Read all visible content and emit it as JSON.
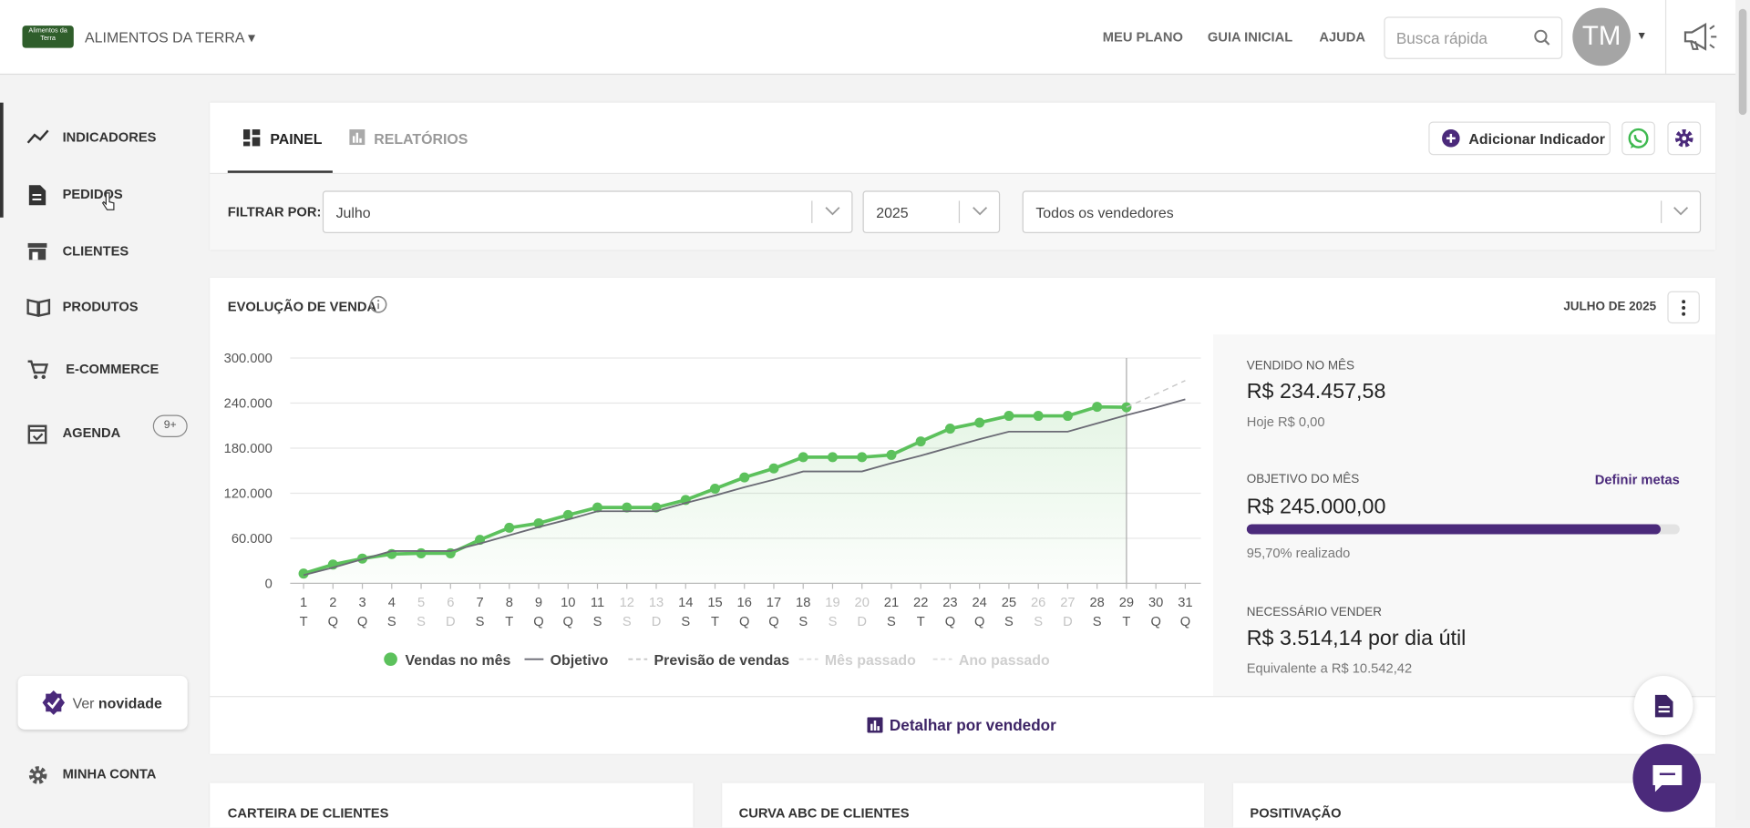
{
  "header": {
    "logo_lines": [
      "Alimentos da",
      "Terra"
    ],
    "company": "ALIMENTOS DA TERRA",
    "nav": [
      "MEU PLANO",
      "GUIA INICIAL",
      "AJUDA"
    ],
    "search_placeholder": "Busca rápida",
    "avatar": "TM"
  },
  "sidebar": {
    "items": [
      {
        "label": "INDICADORES"
      },
      {
        "label": "PEDIDOS"
      },
      {
        "label": "CLIENTES"
      },
      {
        "label": "PRODUTOS"
      },
      {
        "label": "E-COMMERCE"
      },
      {
        "label": "AGENDA",
        "badge": "9+"
      }
    ],
    "news_prefix": "Ver",
    "news_bold": "novidade",
    "account": "MINHA CONTA"
  },
  "tabs": [
    "PAINEL",
    "RELATÓRIOS"
  ],
  "add_button": "Adicionar Indicador",
  "filter": {
    "label": "FILTRAR POR:",
    "month": "Julho",
    "year": "2025",
    "seller": "Todos os vendedores"
  },
  "chart_data": {
    "type": "line",
    "title": "EVOLUÇÃO DE VENDA",
    "period": "JULHO DE 2025",
    "categories": [
      "1",
      "2",
      "3",
      "4",
      "5",
      "6",
      "7",
      "8",
      "9",
      "10",
      "11",
      "12",
      "13",
      "14",
      "15",
      "16",
      "17",
      "18",
      "19",
      "20",
      "21",
      "22",
      "23",
      "24",
      "25",
      "26",
      "27",
      "28",
      "29",
      "30",
      "31"
    ],
    "weekdays": [
      "T",
      "Q",
      "Q",
      "S",
      "S",
      "D",
      "S",
      "T",
      "Q",
      "Q",
      "S",
      "S",
      "D",
      "S",
      "T",
      "Q",
      "Q",
      "S",
      "S",
      "D",
      "S",
      "T",
      "Q",
      "Q",
      "S",
      "S",
      "D",
      "S",
      "T",
      "Q",
      "Q"
    ],
    "ylim": [
      0,
      300000
    ],
    "yticks": [
      0,
      {
        "value": 60000,
        "label": "60.000"
      },
      {
        "value": 120000,
        "label": "120.000"
      },
      {
        "value": 180000,
        "label": "180.000"
      },
      {
        "value": 240000,
        "label": "240.000"
      },
      {
        "value": 300000,
        "label": "300.000"
      }
    ],
    "grid": true,
    "series": [
      {
        "name": "Vendas no mês",
        "color": "#5cc15c",
        "style": "points",
        "values": [
          13000,
          25000,
          33000,
          39000,
          40000,
          40000,
          58000,
          74000,
          80000,
          91000,
          101000,
          101000,
          101000,
          111000,
          126000,
          141000,
          153000,
          168000,
          168000,
          168000,
          171000,
          189000,
          206000,
          214000,
          223000,
          223000,
          223000,
          235000,
          234458,
          null,
          null
        ]
      },
      {
        "name": "Objetivo",
        "color": "#6b6b75",
        "style": "solid",
        "values": [
          11000,
          21000,
          32000,
          43000,
          43000,
          43000,
          53000,
          64000,
          75000,
          85000,
          96000,
          96000,
          96000,
          107000,
          117000,
          128000,
          138000,
          149000,
          149000,
          149000,
          160000,
          170000,
          181000,
          192000,
          202000,
          202000,
          202000,
          213000,
          224000,
          234000,
          245000
        ]
      },
      {
        "name": "Previsão de vendas",
        "color": "#c8c8c8",
        "style": "dashed",
        "values": [
          null,
          null,
          null,
          null,
          null,
          null,
          null,
          null,
          null,
          null,
          null,
          null,
          null,
          null,
          null,
          null,
          null,
          null,
          null,
          null,
          null,
          null,
          null,
          null,
          null,
          null,
          null,
          null,
          234458,
          252000,
          270000
        ]
      },
      {
        "name": "Mês passado",
        "color": "#dddddd",
        "style": "dashed",
        "values": [
          null,
          null,
          null,
          null,
          null,
          null,
          null,
          null,
          null,
          null,
          null,
          null,
          null,
          null,
          null,
          null,
          null,
          null,
          null,
          null,
          null,
          null,
          null,
          null,
          null,
          null,
          null,
          null,
          null,
          null,
          null
        ]
      },
      {
        "name": "Ano passado",
        "color": "#dddddd",
        "style": "dashed",
        "values": [
          null,
          null,
          null,
          null,
          null,
          null,
          null,
          null,
          null,
          null,
          null,
          null,
          null,
          null,
          null,
          null,
          null,
          null,
          null,
          null,
          null,
          null,
          null,
          null,
          null,
          null,
          null,
          null,
          null,
          null,
          null
        ]
      }
    ]
  },
  "stats": [
    {
      "label": "VENDIDO NO MÊS",
      "value": "R$ 234.457,58",
      "note": "Hoje R$ 0,00"
    },
    {
      "label": "OBJETIVO DO MÊS",
      "value": "R$ 245.000,00",
      "note": "95,70% realizado",
      "link": "Definir metas",
      "progress": 95.7
    },
    {
      "label": "NECESSÁRIO VENDER",
      "value": "R$ 3.514,14 por dia útil",
      "note": "Equivalente a R$ 10.542,42"
    }
  ],
  "detail_link": "Detalhar por vendedor",
  "cards": [
    "CARTEIRA DE CLIENTES",
    "CURVA ABC DE CLIENTES",
    "POSITIVAÇÃO"
  ]
}
